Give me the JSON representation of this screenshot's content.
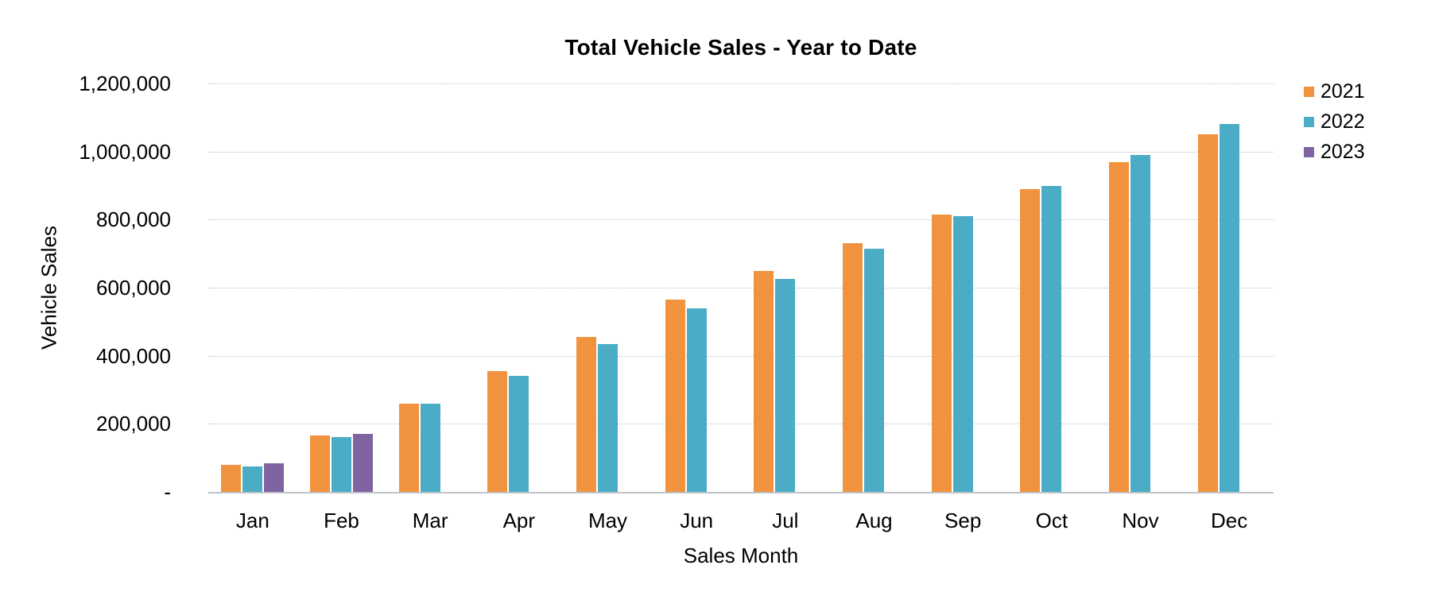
{
  "chart_data": {
    "type": "bar",
    "title": "Total Vehicle Sales - Year to Date",
    "xlabel": "Sales Month",
    "ylabel": "Vehicle Sales",
    "categories": [
      "Jan",
      "Feb",
      "Mar",
      "Apr",
      "May",
      "Jun",
      "Jul",
      "Aug",
      "Sep",
      "Oct",
      "Nov",
      "Dec"
    ],
    "series": [
      {
        "name": "2021",
        "color": "#F0923E",
        "values": [
          80000,
          165000,
          260000,
          355000,
          455000,
          565000,
          650000,
          730000,
          815000,
          890000,
          970000,
          1050000
        ]
      },
      {
        "name": "2022",
        "color": "#4BACC6",
        "values": [
          75000,
          160000,
          260000,
          340000,
          435000,
          540000,
          625000,
          715000,
          810000,
          900000,
          990000,
          1080000
        ]
      },
      {
        "name": "2023",
        "color": "#8064A2",
        "values": [
          85000,
          170000,
          null,
          null,
          null,
          null,
          null,
          null,
          null,
          null,
          null,
          null
        ]
      }
    ],
    "ylim": [
      0,
      1200000
    ],
    "ytick_interval": 200000,
    "ytick_labels": [
      "-",
      "200,000",
      "400,000",
      "600,000",
      "800,000",
      "1,000,000",
      "1,200,000"
    ],
    "grid": "horizontal-dotted",
    "legend_position": "top-right"
  }
}
